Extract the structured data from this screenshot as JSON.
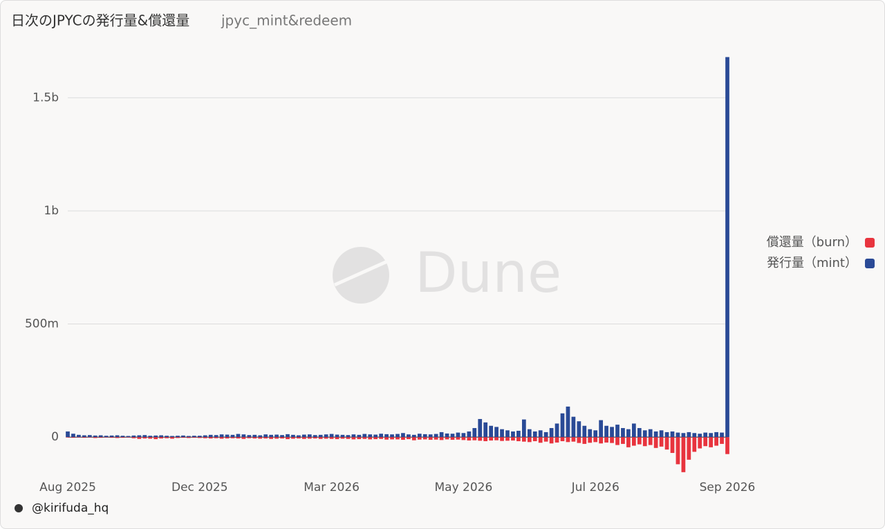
{
  "chart_data": {
    "type": "bar",
    "title": "日次のJPYCの発行量&償還量",
    "subtitle": "jpyc_mint&redeem",
    "watermark": "Dune",
    "credit": "@kirifuda_hq",
    "categories": [
      "Aug 2025",
      null,
      null,
      null,
      null,
      null,
      null,
      null,
      null,
      null,
      null,
      null,
      null,
      null,
      null,
      null,
      null,
      null,
      null,
      null,
      null,
      null,
      null,
      null,
      "Dec 2025",
      null,
      null,
      null,
      null,
      null,
      null,
      null,
      null,
      null,
      null,
      null,
      null,
      null,
      null,
      null,
      null,
      null,
      null,
      null,
      null,
      null,
      null,
      null,
      "Mar 2026",
      null,
      null,
      null,
      null,
      null,
      null,
      null,
      null,
      null,
      null,
      null,
      null,
      null,
      null,
      null,
      null,
      null,
      null,
      null,
      null,
      null,
      null,
      null,
      "May 2026",
      null,
      null,
      null,
      null,
      null,
      null,
      null,
      null,
      null,
      null,
      null,
      null,
      null,
      null,
      null,
      null,
      null,
      null,
      null,
      null,
      null,
      null,
      null,
      "Jul 2026",
      null,
      null,
      null,
      null,
      null,
      null,
      null,
      null,
      null,
      null,
      null,
      null,
      null,
      null,
      null,
      null,
      null,
      null,
      null,
      null,
      null,
      null,
      null,
      "Sep 2026"
    ],
    "series": [
      {
        "name": "償還量（burn）",
        "color": "#e8343e",
        "values": [
          -2000000,
          -3000000,
          -2000000,
          -3000000,
          -2000000,
          -4000000,
          -3000000,
          -2000000,
          -3000000,
          -4000000,
          -3000000,
          -2000000,
          -5000000,
          -8000000,
          -6000000,
          -7000000,
          -9000000,
          -6000000,
          -5000000,
          -7000000,
          -4000000,
          -3000000,
          -4000000,
          -3000000,
          -4000000,
          -5000000,
          -6000000,
          -5000000,
          -7000000,
          -6000000,
          -5000000,
          -6000000,
          -8000000,
          -5000000,
          -6000000,
          -7000000,
          -6000000,
          -8000000,
          -7000000,
          -6000000,
          -9000000,
          -7000000,
          -6000000,
          -8000000,
          -7000000,
          -6000000,
          -8000000,
          -7000000,
          -8000000,
          -9000000,
          -7000000,
          -8000000,
          -10000000,
          -9000000,
          -8000000,
          -10000000,
          -9000000,
          -8000000,
          -11000000,
          -10000000,
          -10000000,
          -12000000,
          -9000000,
          -14000000,
          -11000000,
          -10000000,
          -12000000,
          -11000000,
          -13000000,
          -10000000,
          -12000000,
          -11000000,
          -13000000,
          -15000000,
          -14000000,
          -16000000,
          -18000000,
          -15000000,
          -14000000,
          -17000000,
          -16000000,
          -15000000,
          -18000000,
          -20000000,
          -22000000,
          -18000000,
          -25000000,
          -20000000,
          -28000000,
          -24000000,
          -18000000,
          -22000000,
          -20000000,
          -26000000,
          -30000000,
          -25000000,
          -22000000,
          -28000000,
          -24000000,
          -26000000,
          -35000000,
          -30000000,
          -45000000,
          -38000000,
          -32000000,
          -40000000,
          -35000000,
          -48000000,
          -42000000,
          -55000000,
          -70000000,
          -120000000,
          -155000000,
          -100000000,
          -65000000,
          -50000000,
          -40000000,
          -45000000,
          -38000000,
          -30000000,
          -75000000
        ]
      },
      {
        "name": "発行量（mint）",
        "color": "#2a4a96",
        "values": [
          25000000,
          15000000,
          10000000,
          8000000,
          9000000,
          7000000,
          8000000,
          6000000,
          7000000,
          8000000,
          6000000,
          5000000,
          7000000,
          8000000,
          9000000,
          6000000,
          7000000,
          8000000,
          6000000,
          5000000,
          6000000,
          7000000,
          5000000,
          6000000,
          6000000,
          8000000,
          10000000,
          9000000,
          12000000,
          11000000,
          10000000,
          14000000,
          12000000,
          9000000,
          10000000,
          8000000,
          12000000,
          10000000,
          11000000,
          9000000,
          13000000,
          10000000,
          8000000,
          11000000,
          12000000,
          9000000,
          10000000,
          12000000,
          14000000,
          11000000,
          10000000,
          9000000,
          12000000,
          10000000,
          14000000,
          12000000,
          11000000,
          15000000,
          13000000,
          12000000,
          14000000,
          18000000,
          12000000,
          10000000,
          15000000,
          13000000,
          12000000,
          14000000,
          22000000,
          16000000,
          15000000,
          20000000,
          18000000,
          25000000,
          40000000,
          80000000,
          65000000,
          50000000,
          45000000,
          35000000,
          30000000,
          25000000,
          28000000,
          78000000,
          35000000,
          25000000,
          30000000,
          22000000,
          40000000,
          60000000,
          105000000,
          135000000,
          90000000,
          70000000,
          50000000,
          35000000,
          30000000,
          75000000,
          50000000,
          45000000,
          55000000,
          40000000,
          35000000,
          60000000,
          40000000,
          30000000,
          35000000,
          25000000,
          30000000,
          22000000,
          25000000,
          20000000,
          18000000,
          22000000,
          18000000,
          15000000,
          20000000,
          18000000,
          22000000,
          20000000,
          1680000000
        ]
      }
    ],
    "ylim": [
      -180000000,
      1700000000
    ],
    "yticks": [
      0,
      {
        "value": 500000000,
        "label": "500m"
      },
      {
        "value": 1000000000,
        "label": "1b"
      },
      {
        "value": 1500000000,
        "label": "1.5b"
      }
    ],
    "grid": true,
    "legend": "right"
  }
}
